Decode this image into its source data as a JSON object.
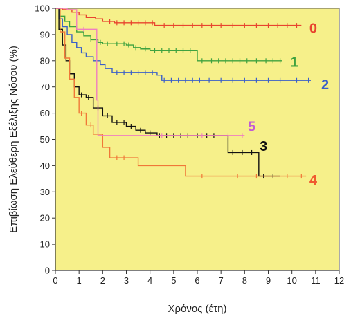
{
  "chart_data": {
    "type": "line",
    "title": "",
    "xlabel": "Χρόνος (έτη)",
    "ylabel": "Επιβίωση Ελεύθερη Εξέλιξης Νόσου (%)",
    "xlim": [
      0,
      12
    ],
    "ylim": [
      0,
      100
    ],
    "x_ticks": [
      "0",
      "1",
      "2",
      "3",
      "4",
      "5",
      "6",
      "7",
      "8",
      "9",
      "10",
      "11",
      "12"
    ],
    "y_ticks": [
      "0",
      "10",
      "20",
      "30",
      "40",
      "50",
      "60",
      "70",
      "80",
      "90",
      "100"
    ],
    "background": "#f6f08a",
    "grid": false,
    "series": [
      {
        "name": "0",
        "color": "#e8442e",
        "points": [
          [
            0,
            100
          ],
          [
            0.3,
            99.5
          ],
          [
            0.7,
            98.5
          ],
          [
            1,
            97.5
          ],
          [
            1.3,
            96.5
          ],
          [
            1.7,
            96
          ],
          [
            2,
            95
          ],
          [
            2.5,
            94.5
          ],
          [
            3,
            94.5
          ],
          [
            3.5,
            94.5
          ],
          [
            4,
            94.5
          ],
          [
            4.2,
            93.5
          ],
          [
            5,
            93.5
          ],
          [
            6,
            93.5
          ],
          [
            7,
            93.5
          ],
          [
            8,
            93.5
          ],
          [
            9,
            93.5
          ],
          [
            10,
            93.5
          ],
          [
            10.4,
            93.5
          ]
        ],
        "censor_x": [
          2.3,
          2.6,
          2.9,
          3.2,
          3.5,
          3.8,
          4.1,
          4.6,
          5,
          5.4,
          5.8,
          6.2,
          6.6,
          7,
          7.5,
          8,
          8.5,
          9,
          9.4,
          9.8,
          10.2
        ]
      },
      {
        "name": "1",
        "color": "#3fa23f",
        "points": [
          [
            0,
            100
          ],
          [
            0.2,
            97
          ],
          [
            0.4,
            95
          ],
          [
            0.6,
            93
          ],
          [
            0.9,
            91
          ],
          [
            1.2,
            89.5
          ],
          [
            1.5,
            88
          ],
          [
            1.8,
            87
          ],
          [
            2,
            86.5
          ],
          [
            2.5,
            86.5
          ],
          [
            3,
            86
          ],
          [
            3.3,
            85
          ],
          [
            3.6,
            84.5
          ],
          [
            4,
            84
          ],
          [
            4.5,
            84
          ],
          [
            5,
            84
          ],
          [
            5.5,
            84
          ],
          [
            5.9,
            84
          ],
          [
            6,
            80
          ],
          [
            7,
            80
          ],
          [
            8,
            80
          ],
          [
            9,
            80
          ],
          [
            9.6,
            80
          ]
        ],
        "censor_x": [
          1.5,
          1.9,
          2.2,
          2.6,
          2.9,
          3.1,
          3.4,
          3.8,
          4.2,
          4.5,
          4.8,
          5.1,
          5.4,
          5.7,
          6.2,
          6.6,
          6.9,
          7.2,
          7.5,
          7.8,
          8.1,
          8.5,
          8.9,
          9.2,
          9.5
        ]
      },
      {
        "name": "2",
        "color": "#3a5fc8",
        "points": [
          [
            0,
            100
          ],
          [
            0.15,
            96
          ],
          [
            0.3,
            93
          ],
          [
            0.5,
            90
          ],
          [
            0.7,
            87
          ],
          [
            0.9,
            85
          ],
          [
            1.1,
            83
          ],
          [
            1.3,
            81.5
          ],
          [
            1.6,
            80
          ],
          [
            1.9,
            78.5
          ],
          [
            2.1,
            77
          ],
          [
            2.4,
            75.5
          ],
          [
            3,
            75.5
          ],
          [
            3.5,
            75.5
          ],
          [
            4,
            75.5
          ],
          [
            4.3,
            74.5
          ],
          [
            4.5,
            72.5
          ],
          [
            5,
            72.5
          ],
          [
            6,
            72.5
          ],
          [
            7,
            72.5
          ],
          [
            8,
            72.5
          ],
          [
            9,
            72.5
          ],
          [
            10,
            72.5
          ],
          [
            10.8,
            72.5
          ]
        ],
        "censor_x": [
          2.6,
          2.9,
          3.2,
          3.5,
          3.8,
          4.1,
          4.6,
          4.9,
          5.2,
          5.5,
          5.8,
          6.1,
          6.5,
          7,
          7.5,
          8,
          8.5,
          9,
          9.5,
          10.2,
          10.7
        ]
      },
      {
        "name": "3",
        "color": "#111111",
        "points": [
          [
            0,
            100
          ],
          [
            0.15,
            92
          ],
          [
            0.3,
            86
          ],
          [
            0.45,
            80
          ],
          [
            0.6,
            75
          ],
          [
            0.8,
            70
          ],
          [
            1,
            67
          ],
          [
            1.3,
            66
          ],
          [
            1.6,
            62
          ],
          [
            2,
            59
          ],
          [
            2.4,
            56.5
          ],
          [
            3,
            55
          ],
          [
            3.4,
            53.5
          ],
          [
            3.8,
            52.5
          ],
          [
            4.3,
            51.5
          ],
          [
            5,
            51.5
          ],
          [
            6,
            51.5
          ],
          [
            6.9,
            51.5
          ],
          [
            7.3,
            45
          ],
          [
            8.2,
            45
          ],
          [
            8.6,
            36
          ],
          [
            9.5,
            36
          ]
        ],
        "censor_x": [
          1.1,
          1.4,
          1.8,
          2.2,
          2.6,
          2.9,
          3.2,
          3.6,
          4,
          4.4,
          4.7,
          5,
          5.3,
          5.6,
          6,
          6.4,
          6.7,
          7.5,
          7.9,
          8.3,
          8.8,
          9.2
        ]
      },
      {
        "name": "4",
        "color": "#f07838",
        "points": [
          [
            0,
            100
          ],
          [
            0.2,
            91
          ],
          [
            0.4,
            81
          ],
          [
            0.6,
            73
          ],
          [
            0.8,
            66
          ],
          [
            1,
            60
          ],
          [
            1.3,
            55.5
          ],
          [
            1.6,
            52
          ],
          [
            2,
            47
          ],
          [
            2.3,
            43
          ],
          [
            3,
            43
          ],
          [
            3.5,
            40
          ],
          [
            4,
            40
          ],
          [
            5,
            40
          ],
          [
            5.5,
            36
          ],
          [
            6,
            36
          ],
          [
            7,
            36
          ],
          [
            8,
            36
          ],
          [
            9,
            36
          ],
          [
            10,
            36
          ],
          [
            10.6,
            36
          ]
        ],
        "censor_x": [
          1.1,
          1.5,
          2.6,
          2.9,
          6.2,
          7.7,
          8.5,
          9.8,
          10.4
        ]
      },
      {
        "name": "5",
        "color": "#f07ec0",
        "points": [
          [
            0,
            100
          ],
          [
            0.5,
            99.5
          ],
          [
            0.9,
            92
          ],
          [
            1.7,
            92
          ],
          [
            1.75,
            65
          ],
          [
            1.8,
            51.5
          ],
          [
            3,
            51.5
          ],
          [
            5,
            51.5
          ],
          [
            7,
            51.5
          ],
          [
            8,
            51.5
          ]
        ],
        "censor_x": [
          1.2,
          4.5,
          6.2,
          7.3,
          7.9
        ]
      }
    ],
    "series_labels": [
      {
        "text": "0",
        "color": "#e8442e",
        "x": 10.9,
        "y": 92.5
      },
      {
        "text": "1",
        "color": "#3fa23f",
        "x": 10.1,
        "y": 79.5
      },
      {
        "text": "2",
        "color": "#3a5fc8",
        "x": 11.4,
        "y": 71
      },
      {
        "text": "5",
        "color": "#c25bd6",
        "x": 8.3,
        "y": 55
      },
      {
        "text": "3",
        "color": "#111111",
        "x": 8.8,
        "y": 47.5
      },
      {
        "text": "4",
        "color": "#f05a30",
        "x": 10.9,
        "y": 34.5
      }
    ]
  }
}
